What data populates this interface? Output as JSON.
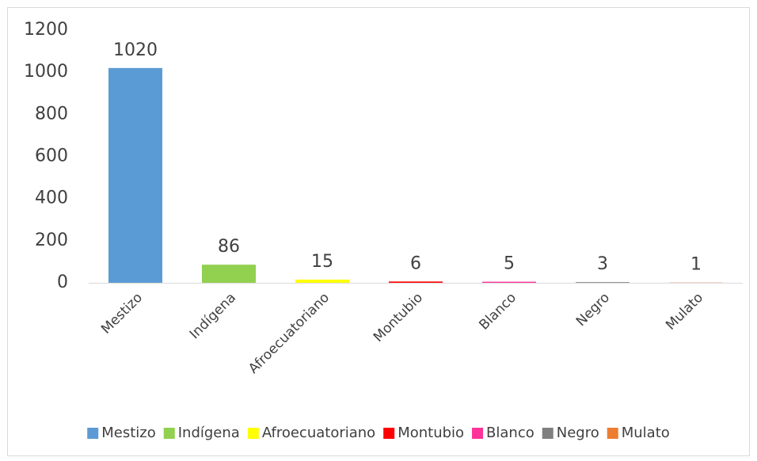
{
  "chart_data": {
    "type": "bar",
    "categories": [
      "Mestizo",
      "Indígena",
      "Afroecuatoriano",
      "Montubio",
      "Blanco",
      "Negro",
      "Mulato"
    ],
    "values": [
      1020,
      86,
      15,
      6,
      5,
      3,
      1
    ],
    "colors": [
      "#5b9bd5",
      "#92d050",
      "#ffff00",
      "#ff0000",
      "#ff3399",
      "#808080",
      "#ed7d31"
    ],
    "ylim": [
      0,
      1200
    ],
    "yticks": [
      0,
      200,
      400,
      600,
      800,
      1000,
      1200
    ],
    "legend": "bottom"
  }
}
